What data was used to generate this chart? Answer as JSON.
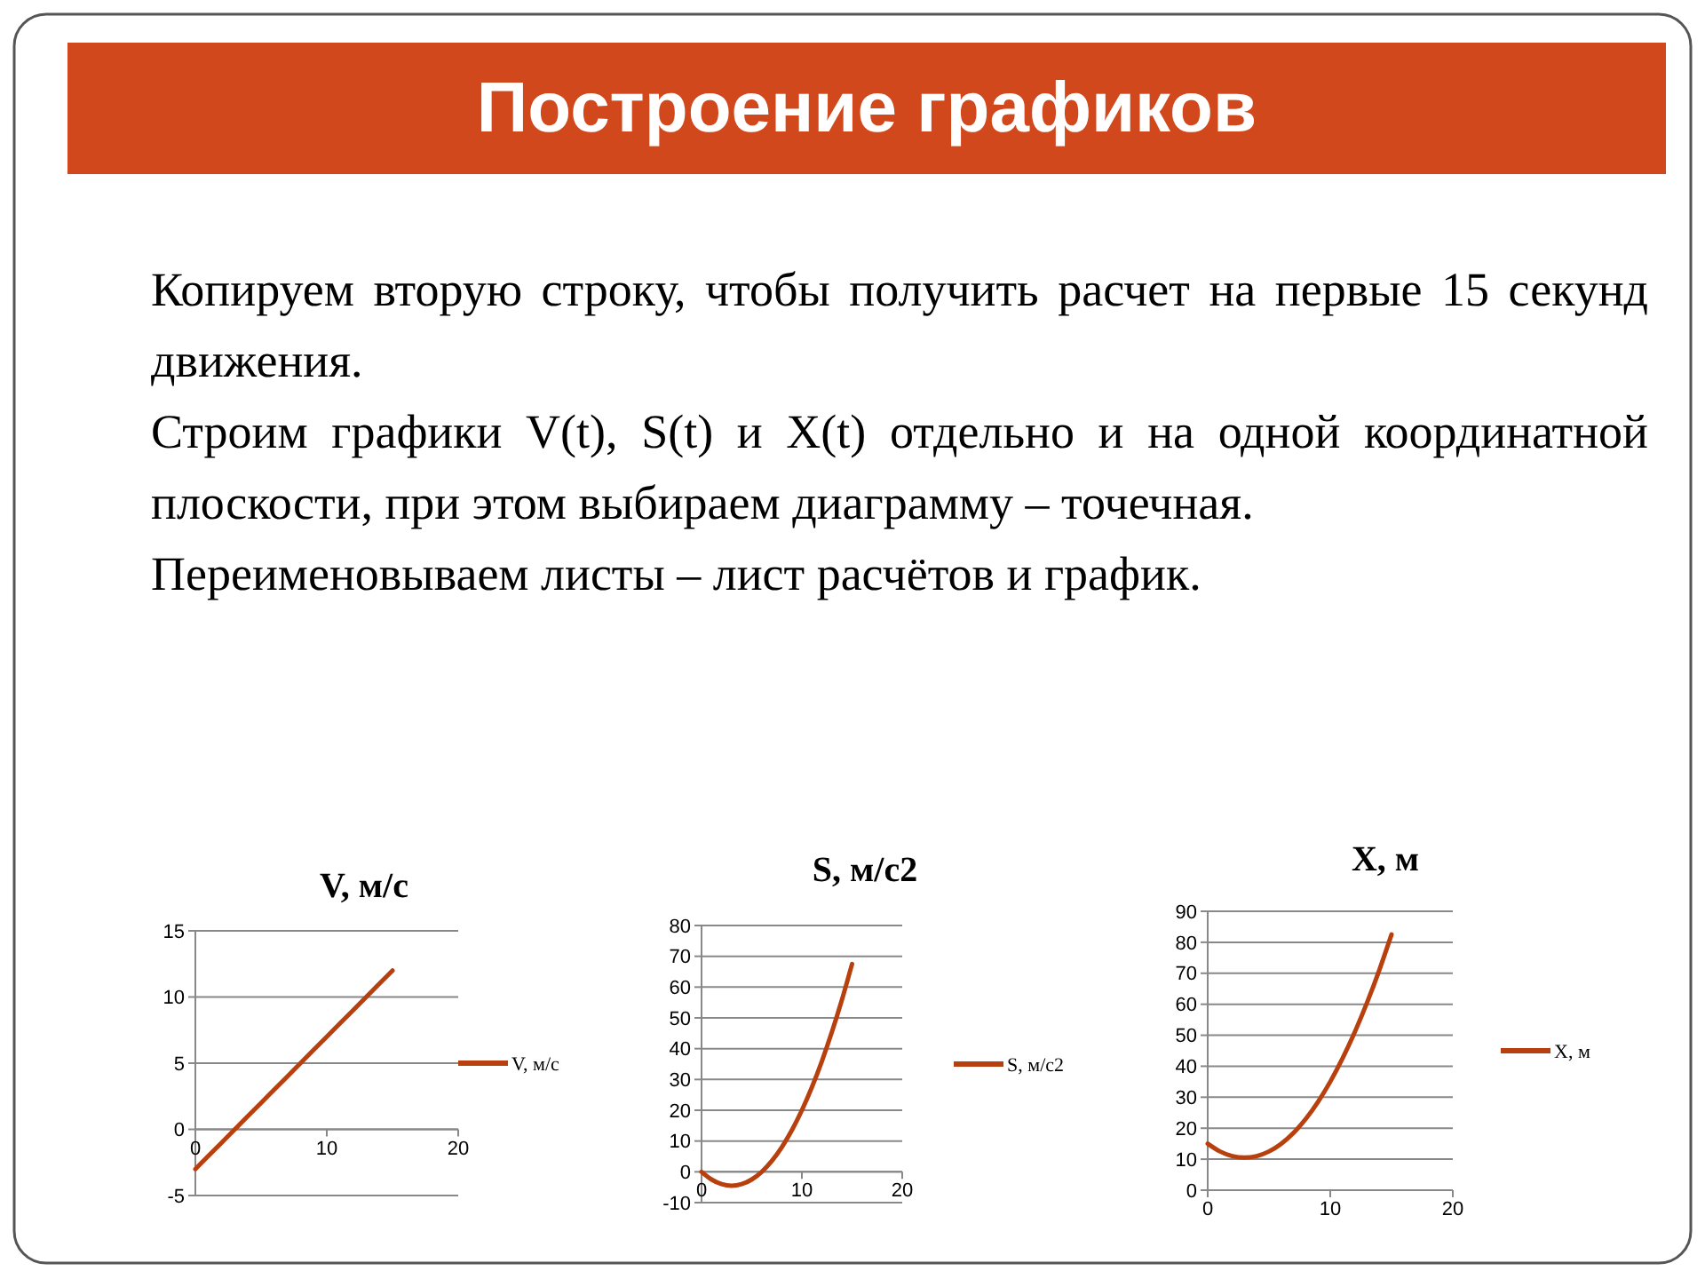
{
  "chart_data": [
    {
      "type": "other",
      "title": "Построение графиков",
      "annotations": [
        "Копируем вторую строку, чтобы получить расчет на первые 15 секунд движения.",
        "Строим графики V(t), S(t) и X(t) отдельно и на одной координатной плоскости, при этом выбираем диаграмму – точечная.",
        "Переименовываем листы – лист расчётов и график."
      ]
    },
    {
      "type": "line",
      "title": "V, м/с",
      "x": [
        0,
        1,
        2,
        3,
        4,
        5,
        6,
        7,
        8,
        9,
        10,
        11,
        12,
        13,
        14,
        15
      ],
      "xlim": [
        0,
        20
      ],
      "xticks": [
        0,
        10,
        20
      ],
      "ylim": [
        -5,
        15
      ],
      "yticks": [
        -5,
        0,
        5,
        10,
        15
      ],
      "grid": "y",
      "legend": "right",
      "series": [
        {
          "name": "V, м/с",
          "color": "#b8400e",
          "values": [
            -3,
            -2,
            -1,
            0,
            1,
            2,
            3,
            4,
            5,
            6,
            7,
            8,
            9,
            10,
            11,
            12
          ]
        }
      ]
    },
    {
      "type": "line",
      "title": "S, м/с2",
      "x": [
        0,
        1,
        2,
        3,
        4,
        5,
        6,
        7,
        8,
        9,
        10,
        11,
        12,
        13,
        14,
        15
      ],
      "xlim": [
        0,
        20
      ],
      "xticks": [
        0,
        10,
        20
      ],
      "ylim": [
        -10,
        80
      ],
      "yticks": [
        -10,
        0,
        10,
        20,
        30,
        40,
        50,
        60,
        70,
        80
      ],
      "grid": "y",
      "legend": "right",
      "series": [
        {
          "name": "S, м/с2",
          "color": "#b8400e",
          "values": [
            0,
            -2.5,
            -4,
            -4.5,
            -4,
            -2.5,
            0,
            3.5,
            8,
            13.5,
            20,
            27.5,
            36,
            45.5,
            56,
            67.5
          ]
        }
      ]
    },
    {
      "type": "line",
      "title": "X, м",
      "x": [
        0,
        1,
        2,
        3,
        4,
        5,
        6,
        7,
        8,
        9,
        10,
        11,
        12,
        13,
        14,
        15
      ],
      "xlim": [
        0,
        20
      ],
      "xticks": [
        0,
        10,
        20
      ],
      "ylim": [
        0,
        90
      ],
      "yticks": [
        0,
        10,
        20,
        30,
        40,
        50,
        60,
        70,
        80,
        90
      ],
      "grid": "y",
      "legend": "right",
      "series": [
        {
          "name": "X, м",
          "color": "#b8400e",
          "values": [
            15,
            12.5,
            11,
            10.5,
            11,
            12.5,
            15,
            18.5,
            23,
            28.5,
            35,
            42.5,
            51,
            60.5,
            71,
            82.5
          ]
        }
      ]
    }
  ]
}
